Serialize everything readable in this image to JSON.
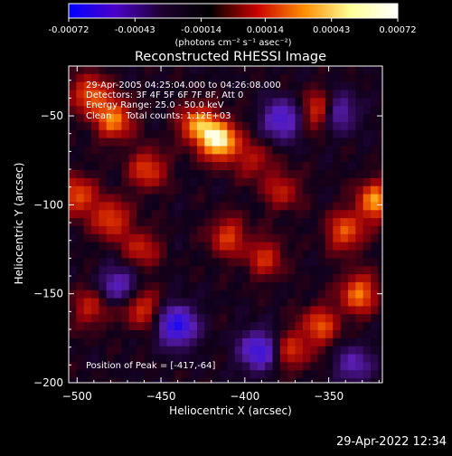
{
  "colorbar": {
    "tick_labels": [
      "-0.00072",
      "-0.00043",
      "-0.00014",
      "0.00014",
      "0.00043",
      "0.00072"
    ],
    "units": "(photons cm⁻² s⁻¹ asec⁻²)",
    "colors": [
      "#0000ff",
      "#4b00c8",
      "#1e002d",
      "#000000",
      "#c80000",
      "#ff8c00",
      "#ffff96",
      "#ffffff"
    ]
  },
  "annotations": {
    "time_range": "29-Apr-2005 04:25:04.000 to 04:26:08.000",
    "detectors": "Detectors: 3F 4F 5F 6F 7F 8F, Att 0",
    "energy": "Energy Range: 25.0 - 50.0 keV",
    "clean": "Clean     Total counts: 1.12E+03",
    "peak": "Position of Peak = [-417,-64]"
  },
  "timestamp": "29-Apr-2022 12:34",
  "chart_data": {
    "type": "heatmap",
    "title": "Reconstructed RHESSI Image",
    "xlabel": "Heliocentric X (arcsec)",
    "ylabel": "Heliocentric Y (arcsec)",
    "xlim": [
      -505,
      -318
    ],
    "ylim": [
      -200,
      -22
    ],
    "xticks": [
      -500,
      -450,
      -400,
      -350
    ],
    "yticks": [
      -50,
      -100,
      -150,
      -200
    ],
    "zlim": [
      -0.00072,
      0.00072
    ],
    "peak_position": [
      -417,
      -64
    ],
    "hotspots": [
      {
        "x": -415,
        "y": -64,
        "value": 0.00072
      },
      {
        "x": -428,
        "y": -55,
        "value": 0.0005
      },
      {
        "x": -478,
        "y": -52,
        "value": 0.00048
      },
      {
        "x": -492,
        "y": -38,
        "value": 0.00042
      },
      {
        "x": -500,
        "y": -95,
        "value": 0.0004
      },
      {
        "x": -480,
        "y": -108,
        "value": 0.00038
      },
      {
        "x": -458,
        "y": -80,
        "value": 0.00036
      },
      {
        "x": -355,
        "y": -47,
        "value": 0.0004
      },
      {
        "x": -322,
        "y": -98,
        "value": 0.00052
      },
      {
        "x": -340,
        "y": -115,
        "value": 0.0004
      },
      {
        "x": -332,
        "y": -150,
        "value": 0.00046
      },
      {
        "x": -355,
        "y": -168,
        "value": 0.00038
      },
      {
        "x": -388,
        "y": -130,
        "value": 0.0003
      },
      {
        "x": -410,
        "y": -118,
        "value": 0.00034
      },
      {
        "x": -462,
        "y": -158,
        "value": 0.00032
      },
      {
        "x": -492,
        "y": -158,
        "value": 0.00026
      },
      {
        "x": -378,
        "y": -92,
        "value": 0.00026
      },
      {
        "x": -395,
        "y": -75,
        "value": 0.00024
      },
      {
        "x": -462,
        "y": -125,
        "value": 0.00028
      },
      {
        "x": -372,
        "y": -182,
        "value": 0.0003
      }
    ],
    "coldspots": [
      {
        "x": -440,
        "y": -168,
        "value": -0.0006
      },
      {
        "x": -392,
        "y": -182,
        "value": -0.0005
      },
      {
        "x": -378,
        "y": -52,
        "value": -0.00045
      },
      {
        "x": -345,
        "y": -48,
        "value": -0.0004
      },
      {
        "x": -475,
        "y": -145,
        "value": -0.00035
      },
      {
        "x": -335,
        "y": -190,
        "value": -0.0003
      }
    ]
  }
}
